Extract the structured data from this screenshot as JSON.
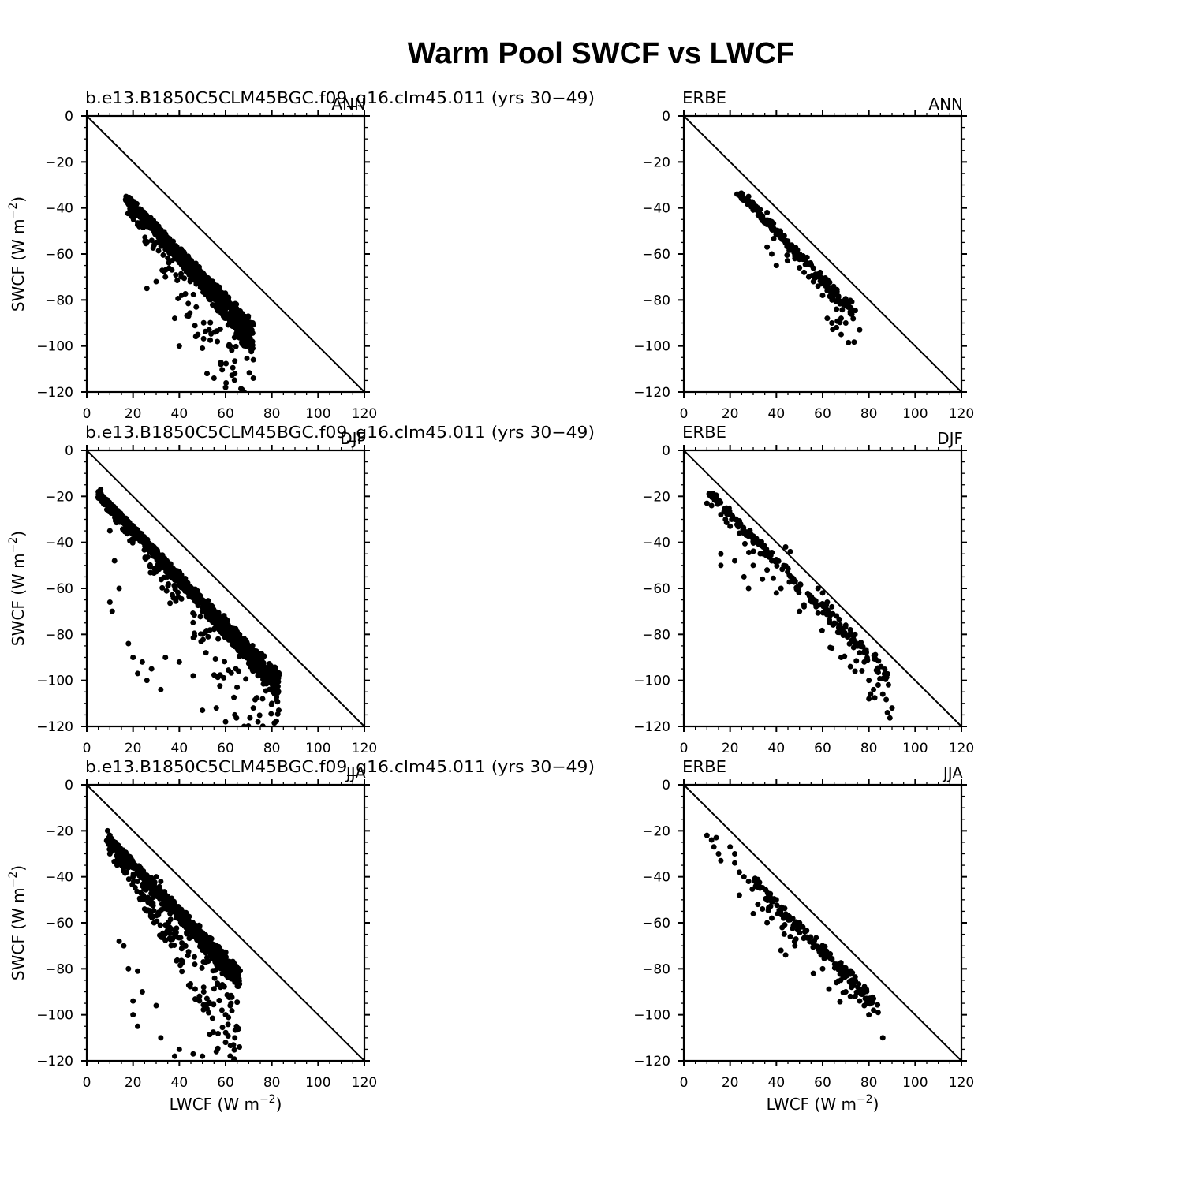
{
  "figure": {
    "title": "Warm Pool SWCF vs LWCF"
  },
  "chart_data": [
    {
      "type": "scatter",
      "title_left": "b.e13.B1850C5CLM45BGC.f09_g16.clm45.011 (yrs 30-49)",
      "title_right": "ANN",
      "xlabel": "",
      "ylabel": "SWCF (W m-2)",
      "xlim": [
        0,
        120
      ],
      "ylim": [
        -120,
        0
      ],
      "xticks": [
        "0",
        "20",
        "40",
        "60",
        "80",
        "100",
        "120"
      ],
      "yticks": [
        "0",
        "−20",
        "−40",
        "−60",
        "−80",
        "−100",
        "−120"
      ],
      "reference_line": "y = -x",
      "cloud": {
        "xmin": 17,
        "xmax": 72,
        "upper_offset": 18,
        "spread_top": 0.35,
        "spread_bottom": 0.9,
        "dense_width": 0.22,
        "n_dense": 900,
        "n_sparse": 110,
        "seed": 11
      },
      "points": [
        [
          17,
          -35
        ],
        [
          18,
          -36
        ],
        [
          20,
          -38
        ],
        [
          23,
          -44
        ],
        [
          26,
          -48
        ],
        [
          30,
          -55
        ],
        [
          34,
          -58
        ],
        [
          38,
          -62
        ],
        [
          42,
          -66
        ],
        [
          46,
          -70
        ],
        [
          50,
          -74
        ],
        [
          54,
          -77
        ],
        [
          58,
          -80
        ],
        [
          60,
          -83
        ],
        [
          26,
          -75
        ],
        [
          30,
          -72
        ],
        [
          34,
          -70
        ],
        [
          38,
          -88
        ],
        [
          40,
          -100
        ],
        [
          44,
          -87
        ],
        [
          48,
          -95
        ],
        [
          52,
          -112
        ],
        [
          55,
          -114
        ],
        [
          58,
          -108
        ],
        [
          62,
          -100
        ],
        [
          66,
          -96
        ],
        [
          70,
          -98
        ],
        [
          72,
          -106
        ],
        [
          72,
          -114
        ],
        [
          64,
          -112
        ],
        [
          60,
          -118
        ],
        [
          68,
          -120
        ]
      ]
    },
    {
      "type": "scatter",
      "title_left": "ERBE",
      "title_right": "ANN",
      "xlabel": "",
      "ylabel": "",
      "xlim": [
        0,
        120
      ],
      "ylim": [
        -120,
        0
      ],
      "xticks": [
        "0",
        "20",
        "40",
        "60",
        "80",
        "100",
        "120"
      ],
      "yticks": [
        "0",
        "−20",
        "−40",
        "−60",
        "−80",
        "−100",
        "−120"
      ],
      "reference_line": "y = -x",
      "cloud": {
        "xmin": 24,
        "xmax": 74,
        "upper_offset": 9,
        "spread_top": 0.1,
        "spread_bottom": 0.35,
        "dense_width": 0.3,
        "n_dense": 170,
        "n_sparse": 20,
        "seed": 23
      },
      "points": [
        [
          23,
          -34
        ],
        [
          25,
          -36
        ],
        [
          28,
          -35
        ],
        [
          30,
          -38
        ],
        [
          32,
          -40
        ],
        [
          34,
          -44
        ],
        [
          36,
          -42
        ],
        [
          38,
          -46
        ],
        [
          40,
          -50
        ],
        [
          42,
          -52
        ],
        [
          44,
          -55
        ],
        [
          36,
          -57
        ],
        [
          38,
          -60
        ],
        [
          40,
          -65
        ],
        [
          46,
          -58
        ],
        [
          48,
          -62
        ],
        [
          50,
          -66
        ],
        [
          52,
          -68
        ],
        [
          54,
          -70
        ],
        [
          56,
          -72
        ],
        [
          58,
          -74
        ],
        [
          60,
          -78
        ],
        [
          62,
          -76
        ],
        [
          64,
          -80
        ],
        [
          66,
          -84
        ],
        [
          68,
          -88
        ],
        [
          70,
          -90
        ],
        [
          66,
          -92
        ],
        [
          68,
          -95
        ],
        [
          72,
          -86
        ],
        [
          76,
          -93
        ],
        [
          62,
          -88
        ],
        [
          64,
          -90
        ]
      ]
    },
    {
      "type": "scatter",
      "title_left": "b.e13.B1850C5CLM45BGC.f09_g16.clm45.011 (yrs 30-49)",
      "title_right": "DJF",
      "xlabel": "",
      "ylabel": "SWCF (W m-2)",
      "xlim": [
        0,
        120
      ],
      "ylim": [
        -120,
        0
      ],
      "xticks": [
        "0",
        "20",
        "40",
        "60",
        "80",
        "100",
        "120"
      ],
      "yticks": [
        "0",
        "−20",
        "−40",
        "−60",
        "−80",
        "−100",
        "−120"
      ],
      "reference_line": "y = -x",
      "cloud": {
        "xmin": 5,
        "xmax": 83,
        "upper_offset": 14,
        "spread_top": 0.25,
        "spread_bottom": 0.7,
        "dense_width": 0.2,
        "n_dense": 1100,
        "n_sparse": 160,
        "seed": 31
      },
      "points": [
        [
          5,
          -18
        ],
        [
          6,
          -17
        ],
        [
          7,
          -20
        ],
        [
          9,
          -22
        ],
        [
          12,
          -25
        ],
        [
          14,
          -30
        ],
        [
          10,
          -35
        ],
        [
          12,
          -48
        ],
        [
          14,
          -60
        ],
        [
          10,
          -66
        ],
        [
          11,
          -70
        ],
        [
          18,
          -84
        ],
        [
          20,
          -90
        ],
        [
          22,
          -97
        ],
        [
          26,
          -100
        ],
        [
          24,
          -92
        ],
        [
          28,
          -95
        ],
        [
          32,
          -104
        ],
        [
          34,
          -90
        ],
        [
          40,
          -92
        ],
        [
          46,
          -98
        ],
        [
          50,
          -113
        ],
        [
          56,
          -112
        ],
        [
          60,
          -118
        ],
        [
          64,
          -115
        ],
        [
          72,
          -112
        ],
        [
          76,
          -108
        ],
        [
          80,
          -110
        ],
        [
          83,
          -113
        ],
        [
          68,
          -120
        ],
        [
          74,
          -118
        ]
      ]
    },
    {
      "type": "scatter",
      "title_left": "ERBE",
      "title_right": "DJF",
      "xlabel": "",
      "ylabel": "",
      "xlim": [
        0,
        120
      ],
      "ylim": [
        -120,
        0
      ],
      "xticks": [
        "0",
        "20",
        "40",
        "60",
        "80",
        "100",
        "120"
      ],
      "yticks": [
        "0",
        "−20",
        "−40",
        "−60",
        "−80",
        "−100",
        "−120"
      ],
      "reference_line": "y = -x",
      "cloud": {
        "xmin": 10,
        "xmax": 90,
        "upper_offset": 7,
        "spread_top": 0.3,
        "spread_bottom": 0.3,
        "dense_width": 0.25,
        "n_dense": 190,
        "n_sparse": 25,
        "seed": 47
      },
      "points": [
        [
          10,
          -23
        ],
        [
          12,
          -24
        ],
        [
          14,
          -22
        ],
        [
          16,
          -28
        ],
        [
          18,
          -30
        ],
        [
          20,
          -33
        ],
        [
          22,
          -30
        ],
        [
          24,
          -36
        ],
        [
          16,
          -45
        ],
        [
          16,
          -50
        ],
        [
          22,
          -48
        ],
        [
          26,
          -55
        ],
        [
          28,
          -60
        ],
        [
          30,
          -50
        ],
        [
          34,
          -56
        ],
        [
          36,
          -52
        ],
        [
          38,
          -48
        ],
        [
          40,
          -62
        ],
        [
          42,
          -60
        ],
        [
          44,
          -42
        ],
        [
          46,
          -44
        ],
        [
          50,
          -70
        ],
        [
          52,
          -68
        ],
        [
          58,
          -60
        ],
        [
          60,
          -62
        ],
        [
          62,
          -66
        ],
        [
          64,
          -68
        ],
        [
          66,
          -72
        ],
        [
          70,
          -76
        ],
        [
          72,
          -78
        ],
        [
          74,
          -80
        ],
        [
          76,
          -84
        ],
        [
          76,
          -88
        ],
        [
          78,
          -92
        ],
        [
          74,
          -96
        ],
        [
          80,
          -100
        ],
        [
          82,
          -104
        ],
        [
          80,
          -108
        ],
        [
          84,
          -102
        ],
        [
          86,
          -106
        ],
        [
          88,
          -114
        ],
        [
          90,
          -112
        ],
        [
          64,
          -86
        ],
        [
          68,
          -90
        ],
        [
          72,
          -94
        ]
      ]
    },
    {
      "type": "scatter",
      "title_left": "b.e13.B1850C5CLM45BGC.f09_g16.clm45.011 (yrs 30-49)",
      "title_right": "JJA",
      "xlabel": "LWCF (W m-2)",
      "ylabel": "SWCF (W m-2)",
      "xlim": [
        0,
        120
      ],
      "ylim": [
        -120,
        0
      ],
      "xticks": [
        "0",
        "20",
        "40",
        "60",
        "80",
        "100",
        "120"
      ],
      "yticks": [
        "0",
        "−20",
        "−40",
        "−60",
        "−80",
        "−100",
        "−120"
      ],
      "reference_line": "y = -x",
      "cloud": {
        "xmin": 9,
        "xmax": 66,
        "upper_offset": 14,
        "spread_top": 0.5,
        "spread_bottom": 0.85,
        "dense_width": 0.17,
        "n_dense": 800,
        "n_sparse": 230,
        "seed": 59
      },
      "points": [
        [
          9,
          -20
        ],
        [
          10,
          -22
        ],
        [
          10,
          -30
        ],
        [
          12,
          -28
        ],
        [
          14,
          -32
        ],
        [
          16,
          -34
        ],
        [
          18,
          -36
        ],
        [
          20,
          -40
        ],
        [
          22,
          -42
        ],
        [
          30,
          -40
        ],
        [
          32,
          -42
        ],
        [
          36,
          -56
        ],
        [
          14,
          -68
        ],
        [
          16,
          -70
        ],
        [
          18,
          -80
        ],
        [
          22,
          -81
        ],
        [
          20,
          -94
        ],
        [
          20,
          -100
        ],
        [
          24,
          -90
        ],
        [
          22,
          -105
        ],
        [
          30,
          -96
        ],
        [
          32,
          -110
        ],
        [
          38,
          -118
        ],
        [
          40,
          -115
        ],
        [
          46,
          -117
        ],
        [
          50,
          -118
        ],
        [
          56,
          -116
        ],
        [
          60,
          -112
        ],
        [
          64,
          -110
        ],
        [
          66,
          -114
        ],
        [
          60,
          -100
        ],
        [
          62,
          -96
        ]
      ]
    },
    {
      "type": "scatter",
      "title_left": "ERBE",
      "title_right": "JJA",
      "xlabel": "LWCF (W m-2)",
      "ylabel": "",
      "xlim": [
        0,
        120
      ],
      "ylim": [
        -120,
        0
      ],
      "xticks": [
        "0",
        "20",
        "40",
        "60",
        "80",
        "100",
        "120"
      ],
      "yticks": [
        "0",
        "−20",
        "−40",
        "−60",
        "−80",
        "−100",
        "−120"
      ],
      "reference_line": "y = -x",
      "cloud": {
        "xmin": 30,
        "xmax": 84,
        "upper_offset": 10,
        "spread_top": 0.35,
        "spread_bottom": 0.2,
        "dense_width": 0.3,
        "n_dense": 170,
        "n_sparse": 20,
        "seed": 71
      },
      "points": [
        [
          10,
          -22
        ],
        [
          12,
          -24
        ],
        [
          14,
          -23
        ],
        [
          13,
          -27
        ],
        [
          15,
          -30
        ],
        [
          16,
          -33
        ],
        [
          20,
          -27
        ],
        [
          22,
          -30
        ],
        [
          22,
          -34
        ],
        [
          24,
          -38
        ],
        [
          26,
          -40
        ],
        [
          28,
          -42
        ],
        [
          24,
          -48
        ],
        [
          30,
          -56
        ],
        [
          32,
          -52
        ],
        [
          34,
          -54
        ],
        [
          36,
          -60
        ],
        [
          38,
          -58
        ],
        [
          40,
          -50
        ],
        [
          42,
          -72
        ],
        [
          44,
          -74
        ],
        [
          46,
          -66
        ],
        [
          48,
          -70
        ],
        [
          56,
          -82
        ],
        [
          60,
          -80
        ],
        [
          66,
          -86
        ],
        [
          70,
          -90
        ],
        [
          72,
          -92
        ],
        [
          76,
          -94
        ],
        [
          78,
          -96
        ],
        [
          80,
          -100
        ],
        [
          82,
          -98
        ],
        [
          84,
          -99
        ],
        [
          86,
          -110
        ]
      ]
    }
  ]
}
